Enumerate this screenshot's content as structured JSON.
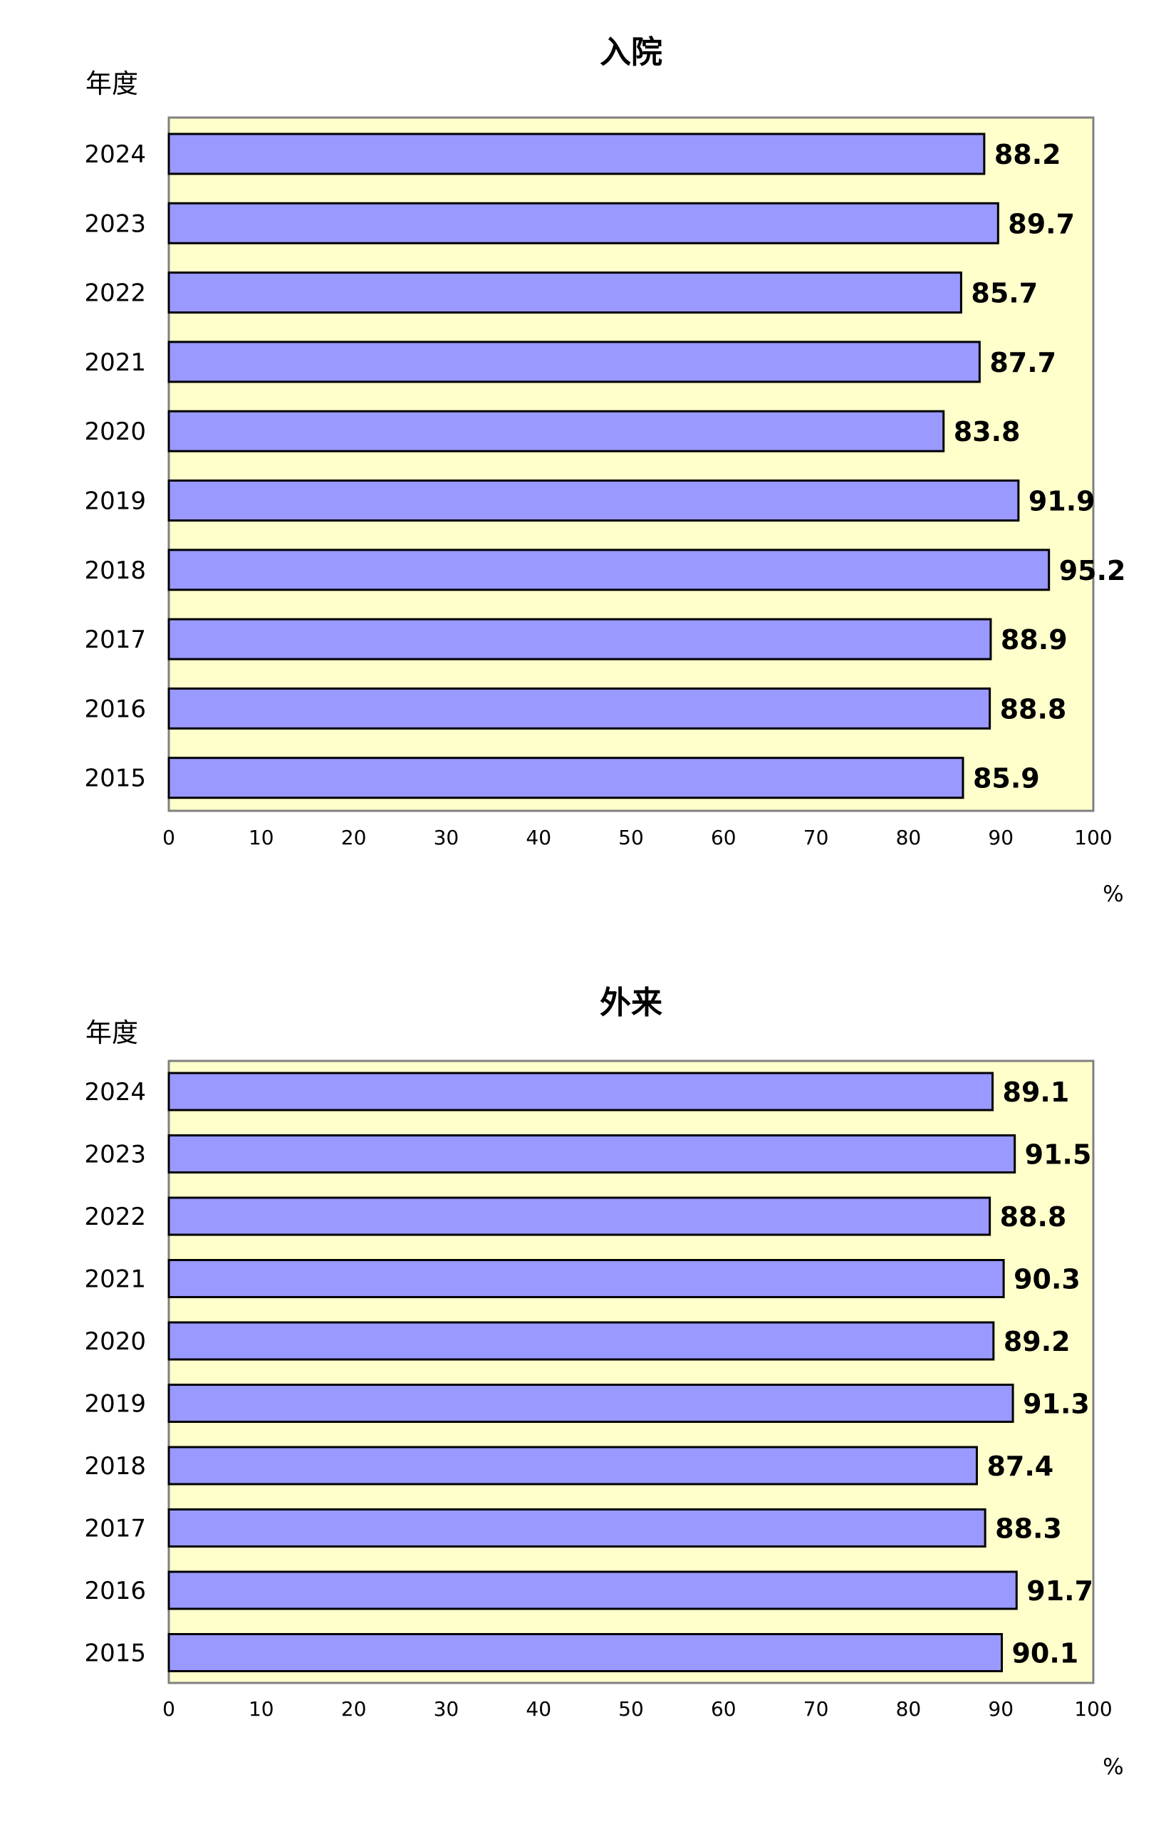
{
  "chart_data": [
    {
      "type": "bar",
      "orientation": "horizontal",
      "title": "入院",
      "ylabel": "年度",
      "xlabel": "%",
      "categories": [
        "2024",
        "2023",
        "2022",
        "2021",
        "2020",
        "2019",
        "2018",
        "2017",
        "2016",
        "2015"
      ],
      "values": [
        88.2,
        89.7,
        85.7,
        87.7,
        83.8,
        91.9,
        95.2,
        88.9,
        88.8,
        85.9
      ],
      "data_labels": [
        "88.2",
        "89.7",
        "85.7",
        "87.7",
        "83.8",
        "91.9",
        "95.2",
        "88.9",
        "88.8",
        "85.9"
      ],
      "xlim": [
        0,
        100
      ],
      "xticks": [
        "0",
        "10",
        "20",
        "30",
        "40",
        "50",
        "60",
        "70",
        "80",
        "90",
        "100"
      ],
      "grid": false,
      "legend": "none",
      "colors": {
        "bar": "#9999ff",
        "plot_bg": "#ffffcc",
        "frame": "#808080"
      }
    },
    {
      "type": "bar",
      "orientation": "horizontal",
      "title": "外来",
      "ylabel": "年度",
      "xlabel": "%",
      "categories": [
        "2024",
        "2023",
        "2022",
        "2021",
        "2020",
        "2019",
        "2018",
        "2017",
        "2016",
        "2015"
      ],
      "values": [
        89.1,
        91.5,
        88.8,
        90.3,
        89.2,
        91.3,
        87.4,
        88.3,
        91.7,
        90.1
      ],
      "data_labels": [
        "89.1",
        "91.5",
        "88.8",
        "90.3",
        "89.2",
        "91.3",
        "87.4",
        "88.3",
        "91.7",
        "90.1"
      ],
      "xlim": [
        0,
        100
      ],
      "xticks": [
        "0",
        "10",
        "20",
        "30",
        "40",
        "50",
        "60",
        "70",
        "80",
        "90",
        "100"
      ],
      "grid": false,
      "legend": "none",
      "colors": {
        "bar": "#9999ff",
        "plot_bg": "#ffffcc",
        "frame": "#808080"
      }
    }
  ]
}
